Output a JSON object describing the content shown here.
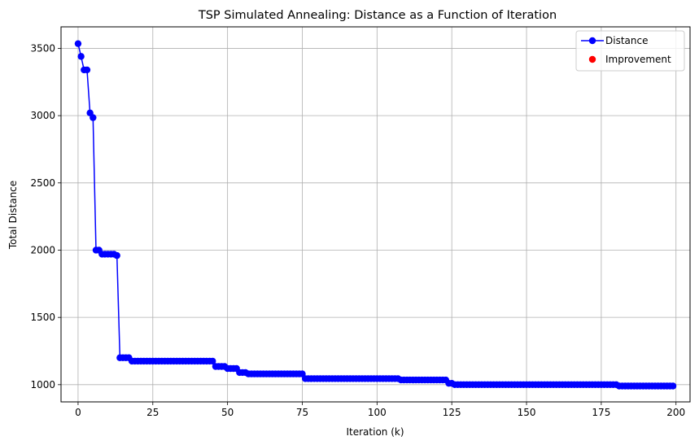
{
  "chart_data": {
    "type": "line",
    "title": "TSP Simulated Annealing: Distance as a Function of Iteration",
    "xlabel": "Iteration (k)",
    "ylabel": "Total Distance",
    "xlim": [
      -5.7,
      204.7
    ],
    "ylim": [
      872,
      3660
    ],
    "xticks": [
      0,
      25,
      50,
      75,
      100,
      125,
      150,
      175,
      200
    ],
    "yticks": [
      1000,
      1500,
      2000,
      2500,
      3000,
      3500
    ],
    "grid": true,
    "legend_position": "top-right",
    "colors": {
      "distance": "#0000ff",
      "improvement": "#ff0000"
    },
    "legend": [
      "Distance",
      "Improvement"
    ],
    "series": [
      {
        "name": "Distance",
        "style": "line-with-markers",
        "segments": [
          {
            "from": 0,
            "to": 0,
            "value": 3535
          },
          {
            "from": 1,
            "to": 1,
            "value": 3440
          },
          {
            "from": 2,
            "to": 3,
            "value": 3340
          },
          {
            "from": 4,
            "to": 4,
            "value": 3020
          },
          {
            "from": 5,
            "to": 5,
            "value": 2985
          },
          {
            "from": 6,
            "to": 7,
            "value": 2000
          },
          {
            "from": 8,
            "to": 12,
            "value": 1970
          },
          {
            "from": 13,
            "to": 13,
            "value": 1960
          },
          {
            "from": 14,
            "to": 17,
            "value": 1200
          },
          {
            "from": 18,
            "to": 45,
            "value": 1175
          },
          {
            "from": 46,
            "to": 49,
            "value": 1135
          },
          {
            "from": 50,
            "to": 53,
            "value": 1120
          },
          {
            "from": 54,
            "to": 56,
            "value": 1090
          },
          {
            "from": 57,
            "to": 75,
            "value": 1080
          },
          {
            "from": 76,
            "to": 107,
            "value": 1045
          },
          {
            "from": 108,
            "to": 123,
            "value": 1035
          },
          {
            "from": 124,
            "to": 125,
            "value": 1010
          },
          {
            "from": 126,
            "to": 180,
            "value": 1000
          },
          {
            "from": 181,
            "to": 199,
            "value": 990
          }
        ]
      },
      {
        "name": "Improvement",
        "style": "scatter",
        "points": []
      }
    ]
  }
}
